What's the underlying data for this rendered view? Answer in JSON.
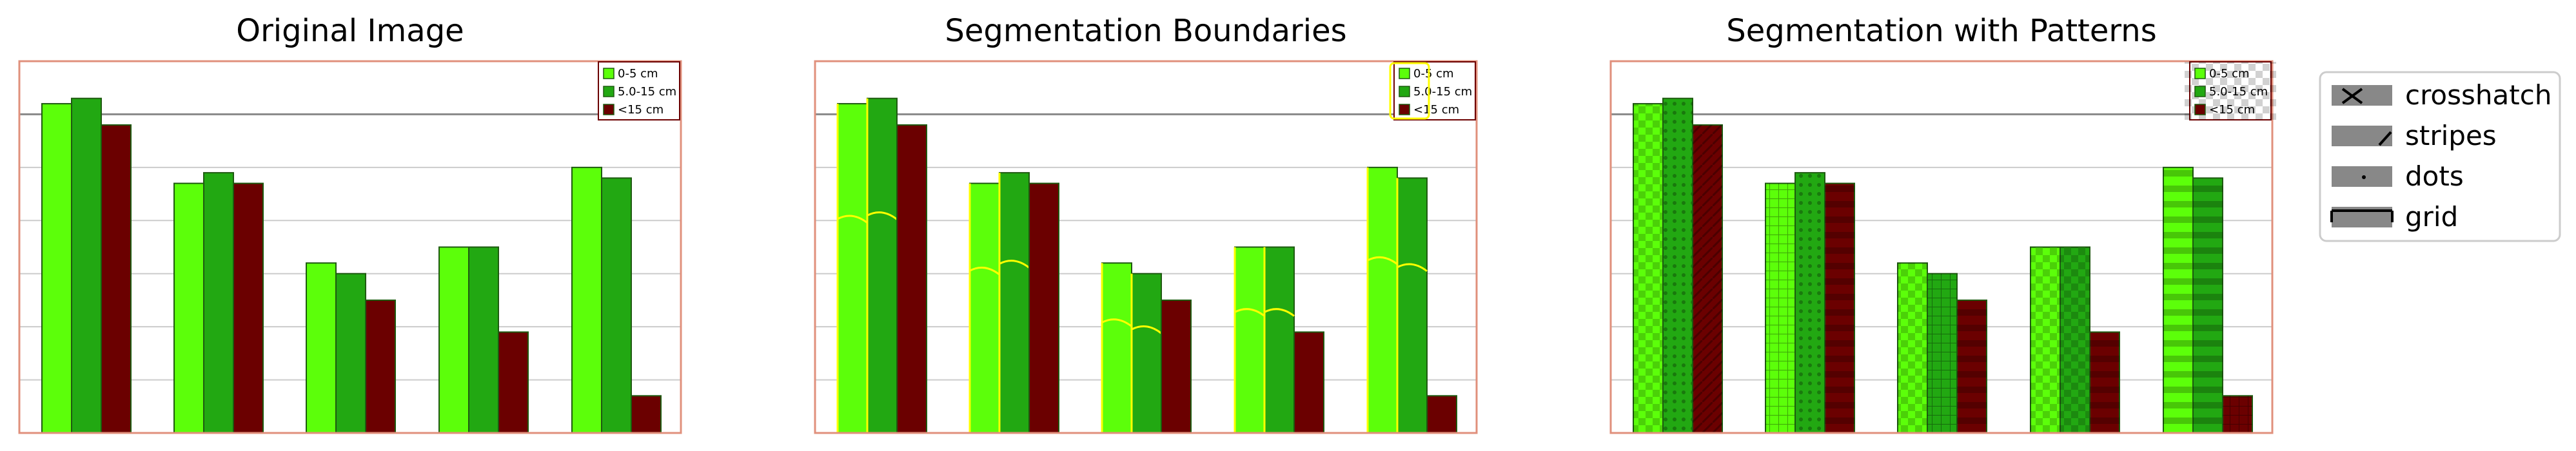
{
  "chart_data": [
    {
      "title": "Original Image",
      "type": "bar",
      "categories": [
        "",
        "",
        "",
        "",
        ""
      ],
      "series": [
        {
          "name": "0-5 cm",
          "values": [
            62,
            47,
            32,
            35,
            50
          ]
        },
        {
          "name": "5.0-15 cm",
          "values": [
            63,
            49,
            30,
            35,
            48
          ]
        },
        {
          "name": "<15 cm",
          "values": [
            58,
            47,
            25,
            19,
            7
          ]
        }
      ],
      "ylim": [
        0,
        70
      ],
      "grid": true,
      "legend": "top-right"
    },
    {
      "title": "Segmentation Boundaries",
      "type": "bar",
      "categories": [
        "",
        "",
        "",
        "",
        ""
      ],
      "series": [
        {
          "name": "0-5 cm",
          "values": [
            62,
            47,
            32,
            35,
            50
          ]
        },
        {
          "name": "5.0-15 cm",
          "values": [
            63,
            49,
            30,
            35,
            48
          ]
        },
        {
          "name": "<15 cm",
          "values": [
            58,
            47,
            25,
            19,
            7
          ]
        }
      ],
      "ylim": [
        0,
        70
      ],
      "grid": true,
      "legend": "top-right"
    },
    {
      "title": "Segmentation with Patterns",
      "type": "bar",
      "categories": [
        "",
        "",
        "",
        "",
        ""
      ],
      "series": [
        {
          "name": "0-5 cm",
          "values": [
            62,
            47,
            32,
            35,
            50
          ]
        },
        {
          "name": "5.0-15 cm",
          "values": [
            63,
            49,
            30,
            35,
            48
          ]
        },
        {
          "name": "<15 cm",
          "values": [
            58,
            47,
            25,
            19,
            7
          ]
        }
      ],
      "ylim": [
        0,
        70
      ],
      "grid": true,
      "legend": "top-right"
    }
  ],
  "pattern_legend": [
    "crosshatch",
    "stripes",
    "dots",
    "grid"
  ],
  "colors": {
    "series": [
      "#5cff0a",
      "#22a812",
      "#6b0000"
    ],
    "frame": "#e0907c",
    "grid": "#cccccc",
    "top_line": "#888888",
    "boundary": "#ffff00"
  }
}
